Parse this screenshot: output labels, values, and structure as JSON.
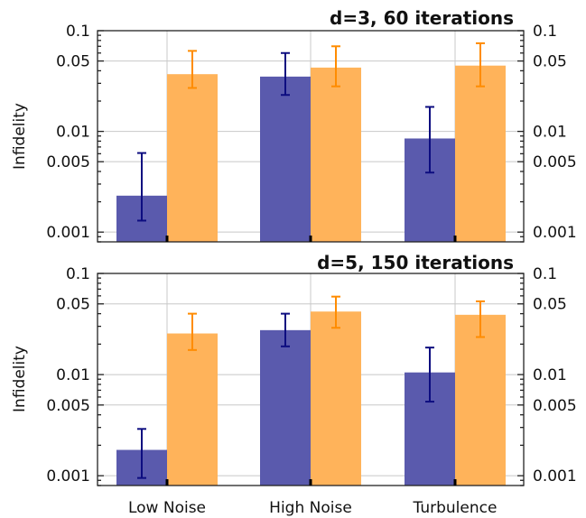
{
  "chart_data": [
    {
      "type": "bar",
      "title": "d=3, 60 iterations",
      "ylabel": "Infidelity",
      "yscale": "log",
      "ylim": [
        0.0008,
        0.1
      ],
      "yticks": [
        0.1,
        0.05,
        0.01,
        0.005,
        0.001
      ],
      "ytick_labels": [
        "0.1",
        "0.05",
        "0.01",
        "0.005",
        "0.001"
      ],
      "right_axis_ticks": true,
      "grid": true,
      "categories": [
        "Low Noise",
        "High Noise",
        "Turbulence"
      ],
      "series": [
        {
          "color": "#5a5aad",
          "error_color": "#0d0d80",
          "values": [
            0.0023,
            0.035,
            0.0085
          ],
          "err_low": [
            0.0013,
            0.023,
            0.0039
          ],
          "err_high": [
            0.0061,
            0.06,
            0.0175
          ]
        },
        {
          "color": "#ffb35a",
          "error_color": "#ff8c00",
          "values": [
            0.037,
            0.043,
            0.045
          ],
          "err_low": [
            0.027,
            0.028,
            0.028
          ],
          "err_high": [
            0.063,
            0.07,
            0.075
          ]
        }
      ]
    },
    {
      "type": "bar",
      "title": "d=5, 150 iterations",
      "ylabel": "Infidelity",
      "yscale": "log",
      "ylim": [
        0.0008,
        0.1
      ],
      "yticks": [
        0.1,
        0.05,
        0.01,
        0.005,
        0.001
      ],
      "ytick_labels": [
        "0.1",
        "0.05",
        "0.01",
        "0.005",
        "0.001"
      ],
      "right_axis_ticks": true,
      "grid": true,
      "categories": [
        "Low Noise",
        "High Noise",
        "Turbulence"
      ],
      "series": [
        {
          "color": "#5a5aad",
          "error_color": "#0d0d80",
          "values": [
            0.0018,
            0.0275,
            0.0105
          ],
          "err_low": [
            0.00095,
            0.019,
            0.0054
          ],
          "err_high": [
            0.0029,
            0.04,
            0.0185
          ]
        },
        {
          "color": "#ffb35a",
          "error_color": "#ff8c00",
          "values": [
            0.0255,
            0.042,
            0.039
          ],
          "err_low": [
            0.0175,
            0.029,
            0.0235
          ],
          "err_high": [
            0.04,
            0.059,
            0.053
          ]
        }
      ]
    }
  ]
}
